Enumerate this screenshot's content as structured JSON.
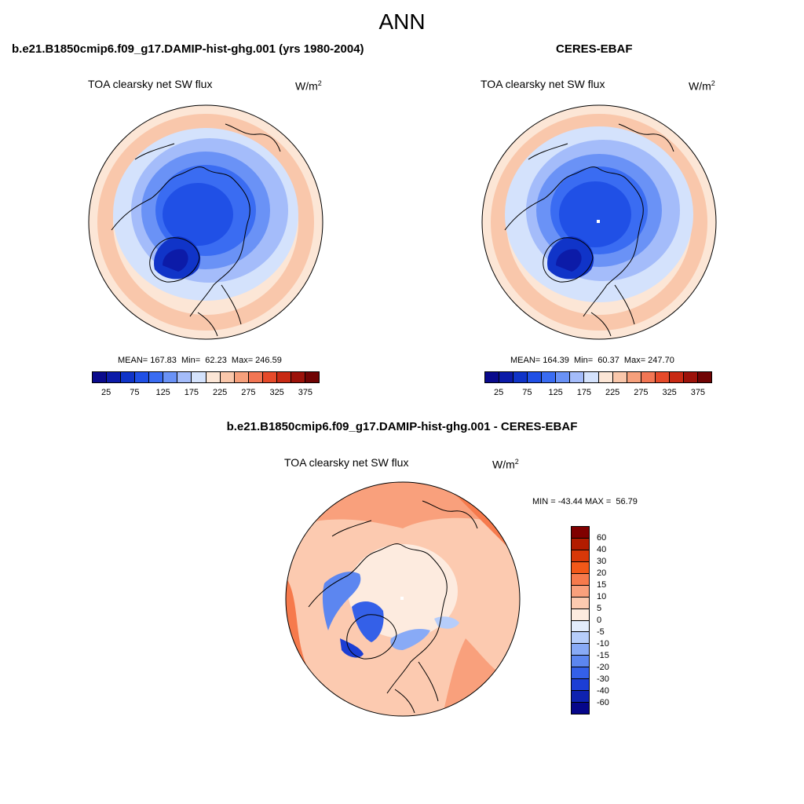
{
  "figure": {
    "title": "ANN"
  },
  "panels": [
    {
      "title": "b.e21.B1850cmip6.f09_g17.DAMIP-hist-ghg.001 (yrs 1980-2004)",
      "variable": "TOA clearsky net SW flux",
      "units_base": "W/m",
      "units_exp": "2",
      "stats_text": "MEAN= 167.83  Min=  62.23  Max= 246.59",
      "stats": {
        "mean": 167.83,
        "min": 62.23,
        "max": 246.59
      }
    },
    {
      "title": "CERES-EBAF",
      "variable": "TOA clearsky net SW flux",
      "units_base": "W/m",
      "units_exp": "2",
      "stats_text": "MEAN= 164.39  Min=  60.37  Max= 247.70",
      "stats": {
        "mean": 164.39,
        "min": 60.37,
        "max": 247.7
      }
    },
    {
      "title": "b.e21.B1850cmip6.f09_g17.DAMIP-hist-ghg.001 - CERES-EBAF",
      "variable": "TOA clearsky net SW flux",
      "units_base": "W/m",
      "units_exp": "2",
      "stats_text": "MIN = -43.44 MAX =  56.79",
      "stats": {
        "min": -43.44,
        "max": 56.79
      }
    }
  ],
  "colorbar_abs": {
    "tick_labels": [
      "25",
      "75",
      "125",
      "175",
      "225",
      "275",
      "325",
      "375"
    ],
    "colors": [
      "#0a0a8c",
      "#0c1ba8",
      "#1034c8",
      "#2050e6",
      "#3a6cf2",
      "#6a92f6",
      "#a4bcfa",
      "#d4e2fc",
      "#fce6d6",
      "#f9c7ab",
      "#f6a07c",
      "#f27654",
      "#e64a2a",
      "#c82a14",
      "#9c120a",
      "#700404"
    ]
  },
  "colorbar_diff": {
    "tick_labels": [
      "60",
      "40",
      "30",
      "20",
      "15",
      "10",
      "5",
      "0",
      "-5",
      "-10",
      "-15",
      "-20",
      "-30",
      "-40",
      "-60"
    ],
    "colors": [
      "#800000",
      "#b21c00",
      "#d83808",
      "#f25818",
      "#f67a4c",
      "#f9a07c",
      "#fccab0",
      "#fdebdf",
      "#e2ecfc",
      "#b6cdfa",
      "#88aaf6",
      "#5c86f0",
      "#3460e8",
      "#1c3ed4",
      "#0e22b0",
      "#06068a"
    ]
  }
}
